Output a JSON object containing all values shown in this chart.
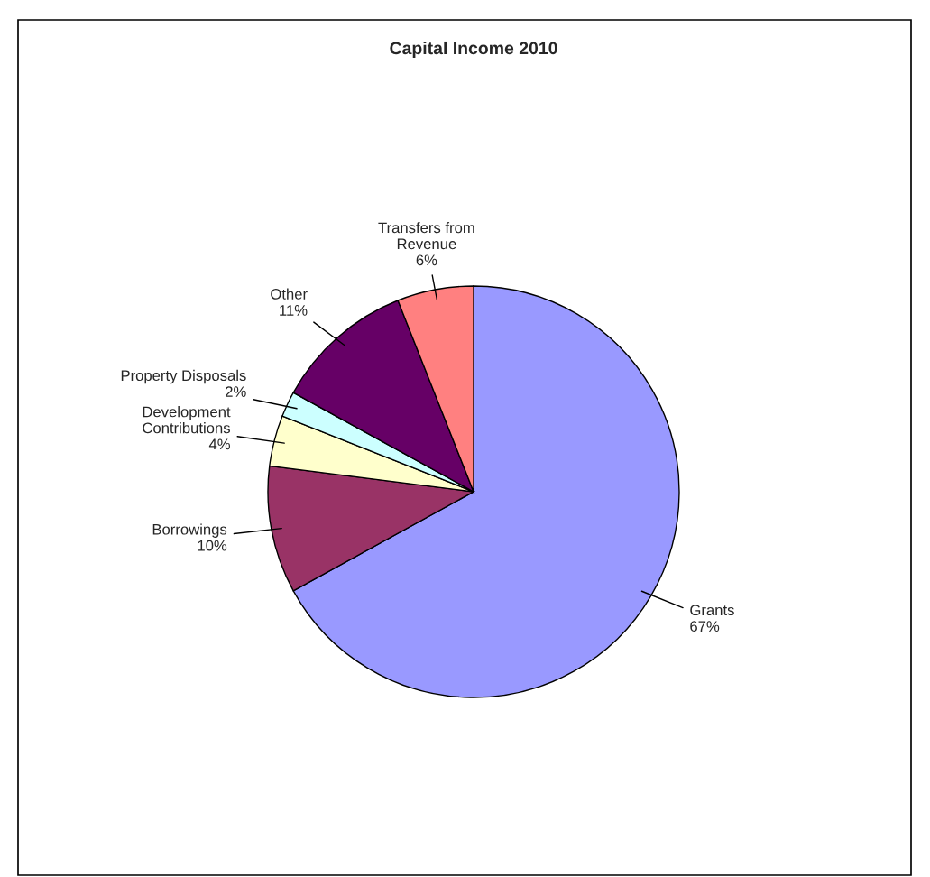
{
  "chart_data": {
    "type": "pie",
    "title": "Capital Income 2010",
    "categories": [
      "Grants",
      "Borrowings",
      "Development\nContributions",
      "Property Disposals",
      "Other",
      "Transfers from\nRevenue"
    ],
    "values": [
      67,
      10,
      4,
      2,
      11,
      6
    ],
    "value_labels": [
      "67%",
      "10%",
      "4%",
      "2%",
      "11%",
      "6%"
    ],
    "colors": [
      "#9999ff",
      "#993366",
      "#ffffcc",
      "#ccffff",
      "#660066",
      "#ff8080"
    ]
  }
}
